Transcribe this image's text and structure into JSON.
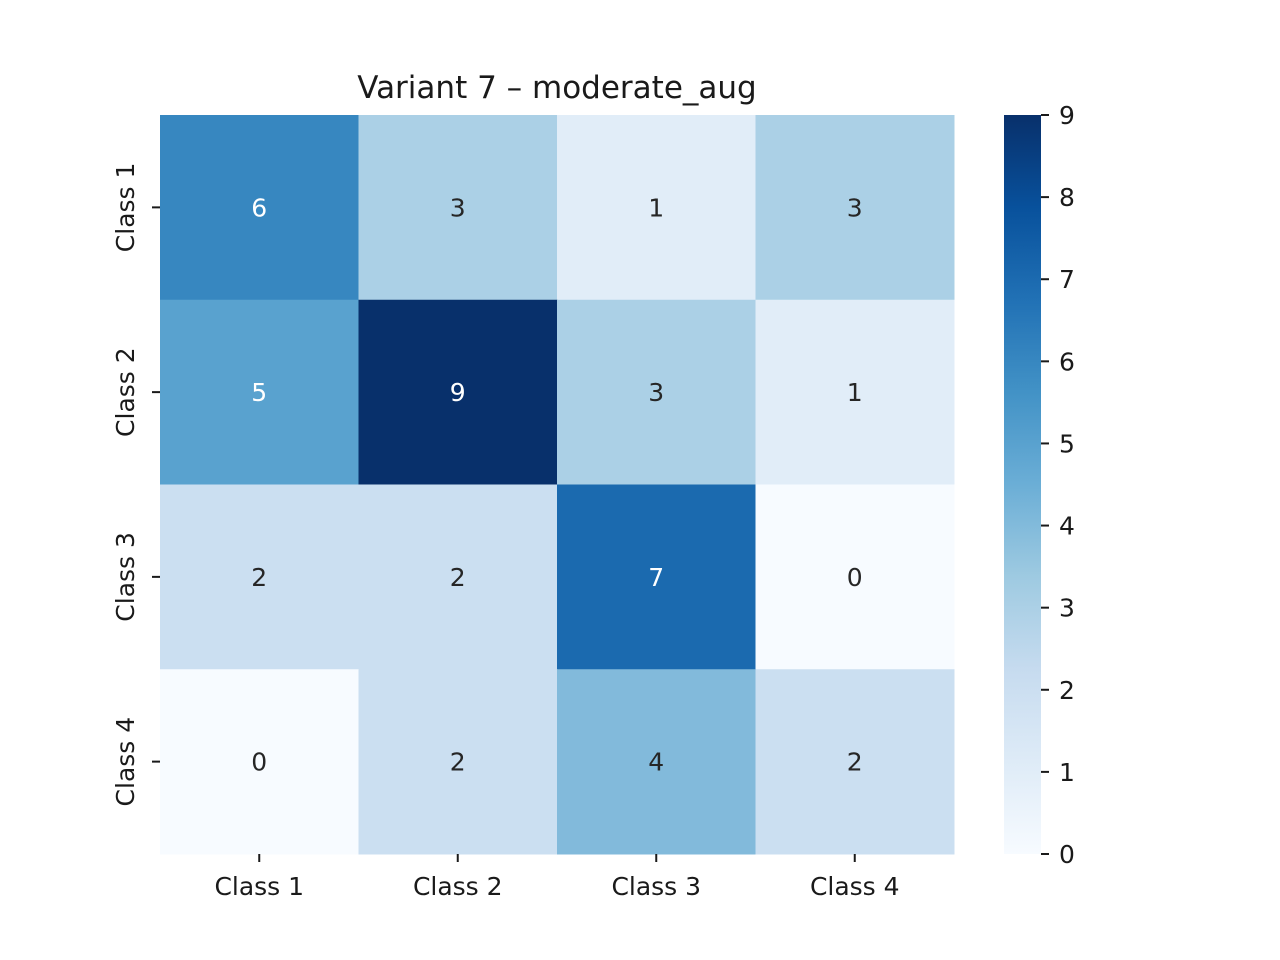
{
  "chart_data": {
    "type": "heatmap",
    "title": "Variant 7 – moderate_aug",
    "xlabel": "",
    "ylabel": "",
    "x_categories": [
      "Class 1",
      "Class 2",
      "Class 3",
      "Class 4"
    ],
    "y_categories": [
      "Class 1",
      "Class 2",
      "Class 3",
      "Class 4"
    ],
    "values": [
      [
        6,
        3,
        1,
        3
      ],
      [
        5,
        9,
        3,
        1
      ],
      [
        2,
        2,
        7,
        0
      ],
      [
        0,
        2,
        4,
        2
      ]
    ],
    "colormap": "Blues",
    "vmin": 0,
    "vmax": 9,
    "colorbar_ticks": [
      0,
      1,
      2,
      3,
      4,
      5,
      6,
      7,
      8,
      9
    ],
    "annotations": true,
    "grid": false,
    "legend": "colorbar-right"
  }
}
